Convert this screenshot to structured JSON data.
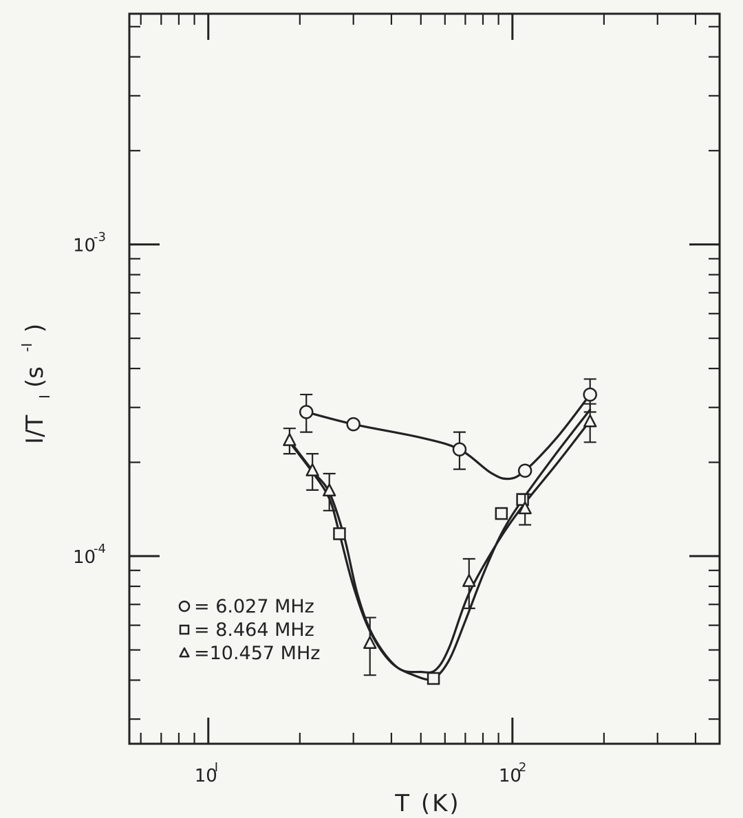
{
  "chart_data": {
    "type": "scatter",
    "xlabel": "T (K)",
    "ylabel_main": "I/T",
    "ylabel_sub": "I",
    "ylabel_unit": "(s",
    "ylabel_unit_exp": "-I",
    "ylabel_unit_close": ")",
    "xscale": "log",
    "yscale": "log",
    "xlim": [
      5.5,
      480
    ],
    "ylim": [
      2.5e-05,
      0.0055
    ],
    "x_ticks": [
      {
        "value": 10,
        "base": "10",
        "exp": "I"
      },
      {
        "value": 100,
        "base": "10",
        "exp": "2"
      }
    ],
    "y_ticks": [
      {
        "value": 0.001,
        "base": "10",
        "exp": "-3"
      },
      {
        "value": 0.0001,
        "base": "10",
        "exp": "-4"
      }
    ],
    "grid": false,
    "legend_position": "bottom-left",
    "series": [
      {
        "name": "6.027 MHz",
        "marker": "circle",
        "points": [
          {
            "x": 21,
            "y": 0.00029,
            "err": 4e-05
          },
          {
            "x": 30,
            "y": 0.000265,
            "err": 0
          },
          {
            "x": 67,
            "y": 0.00022,
            "err": 3e-05
          },
          {
            "x": 110,
            "y": 0.000188,
            "err": 0
          },
          {
            "x": 180,
            "y": 0.00033,
            "err": 4e-05
          }
        ],
        "curve": [
          [
            21,
            0.00029
          ],
          [
            30,
            0.000265
          ],
          [
            50,
            0.00024
          ],
          [
            67,
            0.00022
          ],
          [
            85,
            0.000185
          ],
          [
            97,
            0.000177
          ],
          [
            110,
            0.000188
          ],
          [
            140,
            0.00024
          ],
          [
            180,
            0.00033
          ]
        ]
      },
      {
        "name": "8.464 MHz",
        "marker": "square",
        "points": [
          {
            "x": 27,
            "y": 0.000118,
            "err": 0
          },
          {
            "x": 55,
            "y": 4.05e-05,
            "err": 0
          },
          {
            "x": 92,
            "y": 0.000137,
            "err": 0
          },
          {
            "x": 108,
            "y": 0.000152,
            "err": 0
          }
        ],
        "curve": [
          [
            18.5,
            0.000232
          ],
          [
            22,
            0.000186
          ],
          [
            25,
            0.000153
          ],
          [
            27,
            0.000118
          ],
          [
            30,
            8e-05
          ],
          [
            34,
            5.75e-05
          ],
          [
            40,
            4.55e-05
          ],
          [
            48,
            4.13e-05
          ],
          [
            55,
            4.05e-05
          ],
          [
            62,
            4.65e-05
          ],
          [
            70,
            6.2e-05
          ],
          [
            80,
            8.7e-05
          ],
          [
            92,
            0.000118
          ],
          [
            108,
            0.000152
          ],
          [
            140,
            0.000215
          ],
          [
            180,
            0.000295
          ]
        ]
      },
      {
        "name": "=10.457 MHz",
        "marker": "triangle",
        "points": [
          {
            "x": 18.5,
            "y": 0.000235,
            "err": 2.2e-05
          },
          {
            "x": 22,
            "y": 0.000188,
            "err": 2.5e-05
          },
          {
            "x": 25,
            "y": 0.000162,
            "err": 2.2e-05
          },
          {
            "x": 34,
            "y": 5.25e-05,
            "err": 1.1e-05
          },
          {
            "x": 72,
            "y": 8.3e-05,
            "err": 1.5e-05
          },
          {
            "x": 110,
            "y": 0.000142,
            "err": 1.6e-05
          },
          {
            "x": 180,
            "y": 0.00027,
            "err": 3.8e-05
          }
        ],
        "curve": [
          [
            18.5,
            0.000235
          ],
          [
            22,
            0.000188
          ],
          [
            25,
            0.00016
          ],
          [
            28,
            0.000115
          ],
          [
            31,
            7.5e-05
          ],
          [
            35,
            5.5e-05
          ],
          [
            42,
            4.38e-05
          ],
          [
            50,
            4.25e-05
          ],
          [
            56,
            4.32e-05
          ],
          [
            62,
            5.1e-05
          ],
          [
            72,
            7.6e-05
          ],
          [
            90,
            0.000112
          ],
          [
            110,
            0.000148
          ],
          [
            140,
            0.000198
          ],
          [
            180,
            0.000272
          ]
        ]
      }
    ],
    "legend": [
      {
        "symbol": "circle",
        "label": "= 6.027 MHz"
      },
      {
        "symbol": "square",
        "label": "= 8.464 MHz"
      },
      {
        "symbol": "triangle",
        "label": "=10.457 MHz"
      }
    ]
  }
}
